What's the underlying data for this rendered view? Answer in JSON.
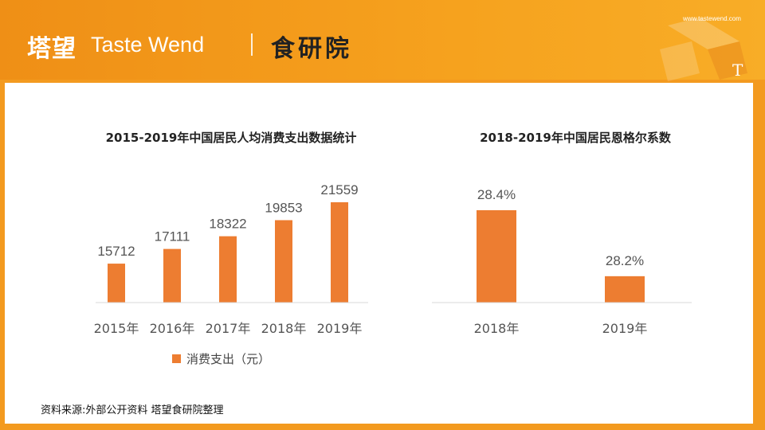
{
  "header": {
    "logo_cn": "塔望",
    "logo_en": "Taste Wend",
    "institute": "食研院",
    "site_url": "www.tastewend.com",
    "corner_mark": "T"
  },
  "colors": {
    "accent": "#ef8f16",
    "bar": "#ed7d31",
    "panel_bg": "#ffffff"
  },
  "chart_data": [
    {
      "type": "bar",
      "title": "2015-2019年中国居民人均消费支出数据统计",
      "categories": [
        "2015年",
        "2016年",
        "2017年",
        "2018年",
        "2019年"
      ],
      "series": [
        {
          "name": "消费支出（元）",
          "values": [
            15712,
            17111,
            18322,
            19853,
            21559
          ]
        }
      ],
      "data_labels": [
        "15712",
        "17111",
        "18322",
        "19853",
        "21559"
      ],
      "legend": "bottom",
      "grid": false
    },
    {
      "type": "bar",
      "title": "2018-2019年中国居民恩格尔系数",
      "categories": [
        "2018年",
        "2019年"
      ],
      "series": [
        {
          "values": [
            28.4,
            28.2
          ]
        }
      ],
      "data_labels": [
        "28.4%",
        "28.2%"
      ],
      "grid": false
    }
  ],
  "source": "资料来源:外部公开资料 塔望食研院整理"
}
